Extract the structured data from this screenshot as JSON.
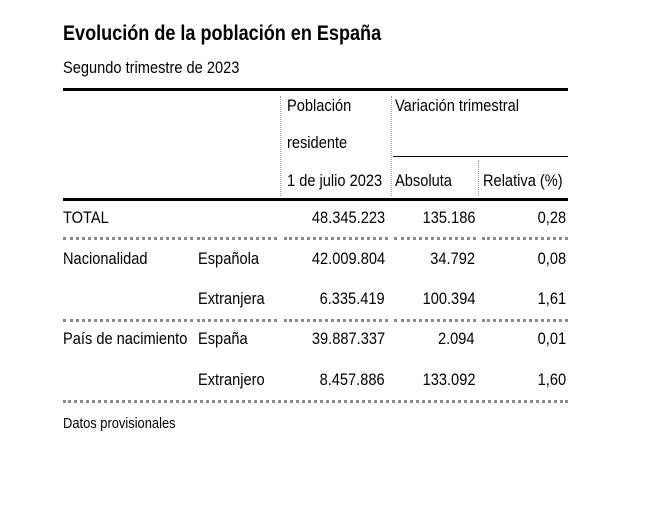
{
  "title": "Evolución de la población en España",
  "subtitle": "Segundo trimestre de 2023",
  "headers": {
    "population_line1": "Población",
    "population_line2": "residente",
    "population_line3": "1 de julio 2023",
    "variation": "Variación trimestral",
    "absolute": "Absoluta",
    "relative": "Relativa (%)"
  },
  "rows": [
    {
      "group": "TOTAL",
      "sub": "",
      "population": "48.345.223",
      "absolute": "135.186",
      "relative": "0,28"
    },
    {
      "group": "Nacionalidad",
      "sub": "Española",
      "population": "42.009.804",
      "absolute": "34.792",
      "relative": "0,08"
    },
    {
      "group": "",
      "sub": "Extranjera",
      "population": "6.335.419",
      "absolute": "100.394",
      "relative": "1,61"
    },
    {
      "group": "País de nacimiento",
      "sub": "España",
      "population": "39.887.337",
      "absolute": "2.094",
      "relative": "0,01"
    },
    {
      "group": "",
      "sub": "Extranjero",
      "population": "8.457.886",
      "absolute": "133.092",
      "relative": "1,60"
    }
  ],
  "footnote": "Datos provisionales"
}
